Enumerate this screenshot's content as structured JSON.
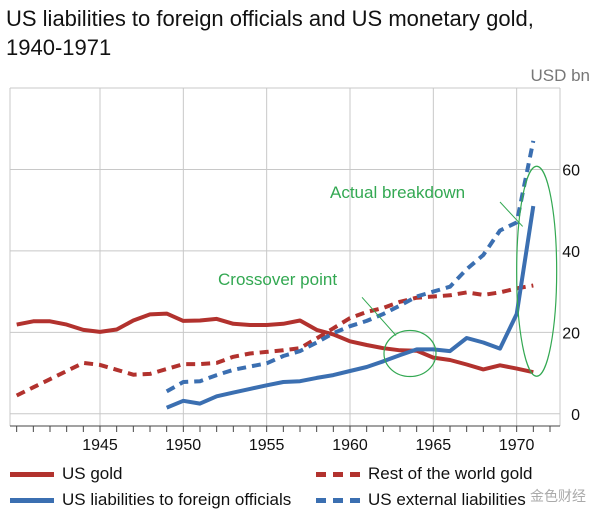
{
  "title": "US liabilities to foreign officials and US monetary gold, 1940-1971",
  "unit_label": "USD bn",
  "legend": {
    "us_gold": "US gold",
    "row_gold": "Rest of the world gold",
    "us_liab": "US liabilities to foreign officials",
    "us_ext": "US external liabilities"
  },
  "watermark": "金色财经",
  "annotations": {
    "crossover": "Crossover point",
    "breakdown": "Actual breakdown"
  },
  "colors": {
    "red": "#b2322e",
    "blue": "#3b6fb1",
    "green": "#33a852",
    "grid": "#c8c8c8"
  },
  "chart_data": {
    "type": "line",
    "title": "US liabilities to foreign officials and US monetary gold, 1940-1971",
    "xlabel": "",
    "ylabel": "USD bn",
    "xlim": [
      1939.6,
      1972.6
    ],
    "ylim": [
      -3,
      80
    ],
    "x_ticks": [
      1945,
      1950,
      1955,
      1960,
      1965,
      1970
    ],
    "y_ticks": [
      0,
      20,
      40,
      60
    ],
    "grid": true,
    "legend_position": "bottom",
    "series": [
      {
        "name": "US gold",
        "style": "solid",
        "color": "#b2322e",
        "x": [
          1940,
          1941,
          1942,
          1943,
          1944,
          1945,
          1946,
          1947,
          1948,
          1949,
          1950,
          1951,
          1952,
          1953,
          1954,
          1955,
          1956,
          1957,
          1958,
          1959,
          1960,
          1961,
          1962,
          1963,
          1964,
          1965,
          1966,
          1967,
          1968,
          1969,
          1970,
          1971
        ],
        "y": [
          21.9,
          22.7,
          22.7,
          21.9,
          20.6,
          20.1,
          20.7,
          22.9,
          24.4,
          24.6,
          22.8,
          22.9,
          23.3,
          22.1,
          21.8,
          21.8,
          22.1,
          22.9,
          20.6,
          19.5,
          17.8,
          16.9,
          16.1,
          15.6,
          15.5,
          13.8,
          13.2,
          12.1,
          10.9,
          11.9,
          11.1,
          10.2
        ]
      },
      {
        "name": "Rest of the world gold",
        "style": "dashed",
        "color": "#b2322e",
        "x": [
          1940,
          1941,
          1942,
          1943,
          1944,
          1945,
          1946,
          1947,
          1948,
          1949,
          1950,
          1951,
          1952,
          1953,
          1954,
          1955,
          1956,
          1957,
          1958,
          1959,
          1960,
          1961,
          1962,
          1963,
          1964,
          1965,
          1966,
          1967,
          1968,
          1969,
          1970,
          1971
        ],
        "y": [
          4.5,
          6.5,
          8.5,
          10.5,
          12.5,
          12,
          10.8,
          9.6,
          9.8,
          11,
          12.2,
          12.2,
          12.5,
          14,
          14.8,
          15.2,
          15.6,
          16.1,
          18.5,
          21,
          23.5,
          25,
          26,
          27.5,
          28.5,
          28.8,
          29.1,
          29.8,
          29.2,
          29.8,
          30.8,
          31.5
        ]
      },
      {
        "name": "US liabilities to foreign officials",
        "style": "solid",
        "color": "#3b6fb1",
        "x": [
          1949,
          1950,
          1951,
          1952,
          1953,
          1954,
          1955,
          1956,
          1957,
          1958,
          1959,
          1960,
          1961,
          1962,
          1963,
          1964,
          1965,
          1966,
          1967,
          1968,
          1969,
          1970,
          1971
        ],
        "y": [
          1.5,
          3.2,
          2.5,
          4.3,
          5.2,
          6.1,
          7,
          7.8,
          8,
          8.8,
          9.5,
          10.5,
          11.5,
          12.9,
          14.4,
          15.8,
          15.8,
          15.4,
          18.6,
          17.5,
          16,
          24.5,
          51
        ]
      },
      {
        "name": "US external liabilities",
        "style": "dashed",
        "color": "#3b6fb1",
        "x": [
          1949,
          1950,
          1951,
          1952,
          1953,
          1954,
          1955,
          1956,
          1957,
          1958,
          1959,
          1960,
          1961,
          1962,
          1963,
          1964,
          1965,
          1966,
          1967,
          1968,
          1969,
          1970,
          1971
        ],
        "y": [
          5.5,
          7.8,
          8,
          9.5,
          10.8,
          11.6,
          12.4,
          14.2,
          15.4,
          17.5,
          19.8,
          21.5,
          22.8,
          24.5,
          26.6,
          28.8,
          30,
          31.2,
          35.5,
          39,
          45,
          47,
          67
        ]
      }
    ]
  }
}
